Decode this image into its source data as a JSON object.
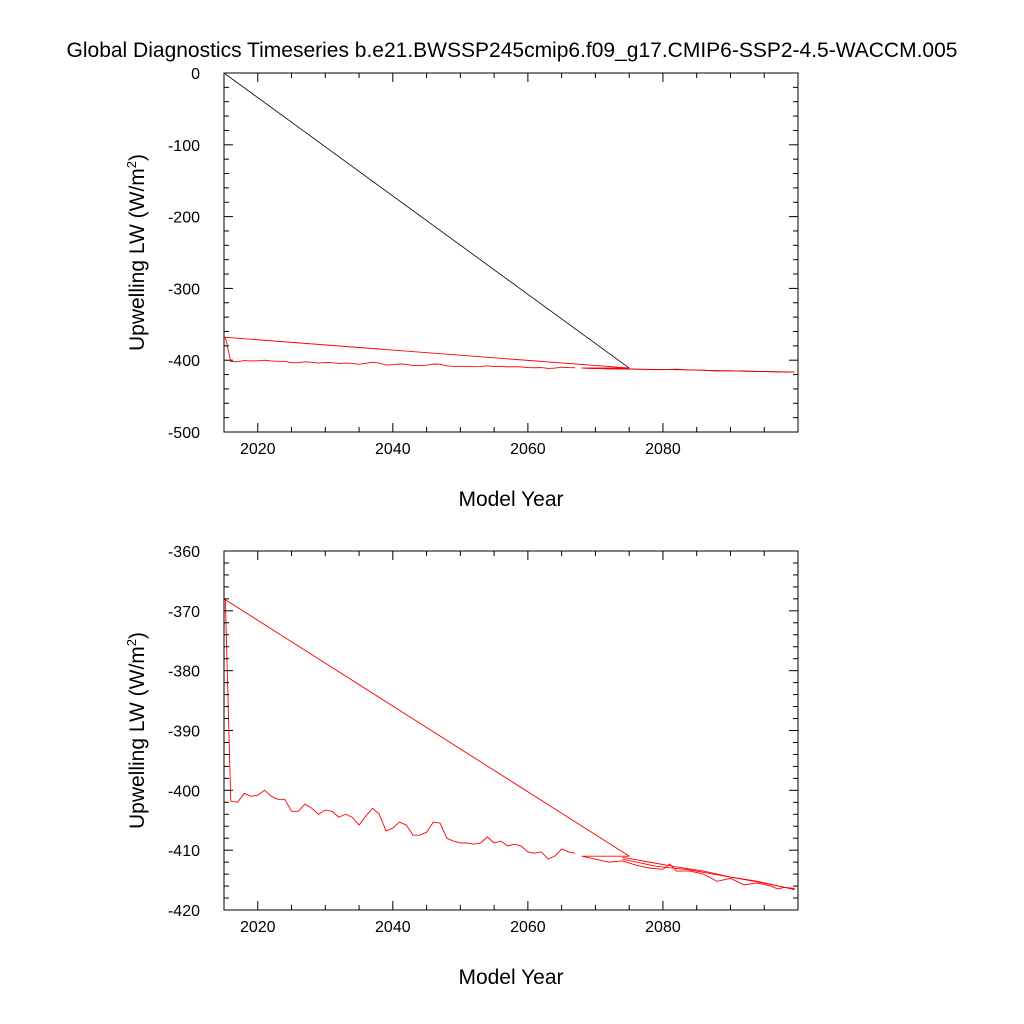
{
  "title": "Global Diagnostics Timeseries b.e21.BWSSP245cmip6.f09_g17.CMIP6-SSP2-4.5-WACCM.005",
  "colors": {
    "series_black": "#000000",
    "series_red": "#ff0000"
  },
  "chart_data": [
    {
      "type": "line",
      "xlabel": "Model Year",
      "ylabel": "Upwelling LW (W/m",
      "ylabel_sup": "2",
      "ylabel_end": ")",
      "xlim": [
        2015,
        2100
      ],
      "ylim": [
        -500,
        0
      ],
      "xticks": [
        2020,
        2040,
        2060,
        2080
      ],
      "yticks": [
        0,
        -100,
        -200,
        -300,
        -400,
        -500
      ],
      "grid": false,
      "series": [
        {
          "color": "#000000",
          "x": [
            2015,
            2075,
            2068,
            2072,
            2076,
            2080,
            2084,
            2088,
            2092,
            2096,
            2099.5
          ],
          "y": [
            0,
            -411,
            -411,
            -412,
            -412.5,
            -413,
            -413.5,
            -414.5,
            -415,
            -416,
            -416.5
          ]
        },
        {
          "color": "#ff0000",
          "x": [
            2015.2,
            2016,
            2017,
            2018,
            2019,
            2020,
            2021,
            2022,
            2023,
            2024,
            2025,
            2026,
            2027,
            2028,
            2029,
            2030,
            2031,
            2032,
            2033,
            2034,
            2035,
            2036,
            2037,
            2038,
            2039,
            2040,
            2041,
            2042,
            2043,
            2044,
            2045,
            2046,
            2047,
            2048,
            2049,
            2050,
            2051,
            2052,
            2053,
            2054,
            2055,
            2056,
            2057,
            2058,
            2059,
            2060,
            2061,
            2062,
            2063,
            2064,
            2065,
            2066,
            2067
          ],
          "y": [
            -368,
            -401.8,
            -402,
            -400.5,
            -401,
            -400.8,
            -400,
            -401,
            -401.5,
            -401.5,
            -403.5,
            -403.5,
            -402.3,
            -403,
            -404,
            -403.3,
            -403.5,
            -404.5,
            -404,
            -404.5,
            -405.8,
            -404.3,
            -403,
            -404,
            -406.8,
            -406.3,
            -405.3,
            -405.8,
            -407.5,
            -407.5,
            -407,
            -405.3,
            -405.5,
            -408,
            -408.5,
            -408.8,
            -408.8,
            -409,
            -408.8,
            -407.8,
            -408.8,
            -408.5,
            -409.3,
            -409,
            -409.3,
            -410.3,
            -410.5,
            -410.3,
            -411.5,
            -411,
            -409.8,
            -410.3,
            -410.5
          ]
        },
        {
          "color": "#ff0000",
          "x": [
            2015,
            2075,
            2068,
            2070,
            2072,
            2074,
            2076,
            2078,
            2080,
            2082,
            2084,
            2086,
            2088,
            2090,
            2092,
            2094,
            2096,
            2097,
            2098,
            2099.5
          ],
          "y": [
            -368,
            -411,
            -411,
            -411.5,
            -412,
            -411.8,
            -412.5,
            -413,
            -413.2,
            -412.5,
            -413.5,
            -414,
            -415.2,
            -414.7,
            -415.5,
            -415.8,
            -416,
            -416.5,
            -416.2,
            -416.5
          ]
        }
      ]
    },
    {
      "type": "line",
      "xlabel": "Model Year",
      "ylabel": "Upwelling LW (W/m",
      "ylabel_sup": "2",
      "ylabel_end": ")",
      "xlim": [
        2015,
        2100
      ],
      "ylim": [
        -420,
        -360
      ],
      "xticks": [
        2020,
        2040,
        2060,
        2080
      ],
      "yticks": [
        -360,
        -370,
        -380,
        -390,
        -400,
        -410,
        -420
      ],
      "grid": false,
      "series": [
        {
          "color": "#ff0000",
          "x": [
            2015.2,
            2016,
            2017,
            2018,
            2019,
            2020,
            2021,
            2022,
            2023,
            2024,
            2025,
            2026,
            2027,
            2028,
            2029,
            2030,
            2031,
            2032,
            2033,
            2034,
            2035,
            2036,
            2037,
            2038,
            2039,
            2040,
            2041,
            2042,
            2043,
            2044,
            2045,
            2046,
            2047,
            2048,
            2049,
            2050,
            2051,
            2052,
            2053,
            2054,
            2055,
            2056,
            2057,
            2058,
            2059,
            2060,
            2061,
            2062,
            2063,
            2064,
            2065,
            2066,
            2067
          ],
          "y": [
            -368,
            -401.8,
            -402,
            -400.5,
            -401,
            -400.8,
            -400,
            -401,
            -401.5,
            -401.5,
            -403.5,
            -403.5,
            -402.3,
            -403,
            -404,
            -403.3,
            -403.5,
            -404.5,
            -404,
            -404.5,
            -405.8,
            -404.3,
            -403,
            -404,
            -406.8,
            -406.3,
            -405.3,
            -405.8,
            -407.5,
            -407.5,
            -407,
            -405.3,
            -405.5,
            -408,
            -408.5,
            -408.8,
            -408.8,
            -409,
            -408.8,
            -407.8,
            -408.8,
            -408.5,
            -409.3,
            -409,
            -409.3,
            -410.3,
            -410.5,
            -410.3,
            -411.5,
            -411,
            -409.8,
            -410.3,
            -410.5
          ]
        },
        {
          "color": "#ff0000",
          "x": [
            2015,
            2075,
            2068,
            2070,
            2072,
            2074,
            2076,
            2078,
            2080,
            2081,
            2082,
            2084,
            2086,
            2088,
            2090,
            2092,
            2094,
            2096,
            2097,
            2098,
            2099.5
          ],
          "y": [
            -368,
            -411,
            -411,
            -411.5,
            -412,
            -411.8,
            -412.5,
            -413,
            -413.2,
            -412.3,
            -413.5,
            -413.5,
            -414,
            -415.2,
            -414.7,
            -415.8,
            -415.5,
            -416,
            -416.5,
            -416.2,
            -416.5
          ]
        },
        {
          "color": "#ff0000",
          "x": [
            2074,
            2078,
            2082,
            2086,
            2090,
            2094,
            2098,
            2099.5
          ],
          "y": [
            -411.2,
            -412,
            -412.8,
            -413.5,
            -414.5,
            -415.3,
            -416.2,
            -416.4
          ]
        },
        {
          "color": "#ff0000",
          "x": [
            2074,
            2079,
            2084,
            2089,
            2094,
            2099.5
          ],
          "y": [
            -411.5,
            -412.7,
            -413.3,
            -414.3,
            -415.2,
            -416.6
          ]
        }
      ]
    }
  ]
}
